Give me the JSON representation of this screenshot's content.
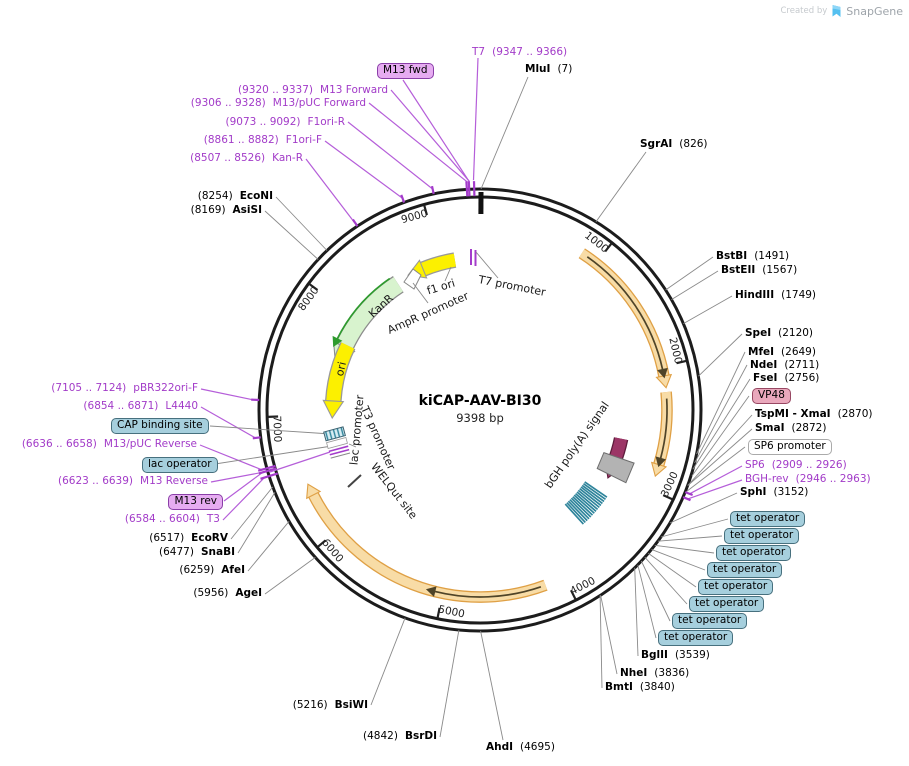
{
  "watermark": {
    "created_by": "Created by",
    "brand": "SnapGene"
  },
  "plasmid": {
    "name": "kiCAP-AAV-BI30",
    "size_label": "9398 bp",
    "length_bp": 9398
  },
  "colors": {
    "primer_purple": "#A23BC8",
    "leader_gray": "#8A8A8A",
    "ring_black": "#1C1C1C",
    "orange_fill": "#F8DCA6",
    "orange_border": "#DFA045",
    "orange_inner_arrow": "#4F4428",
    "green_fill": "#D8F3CE",
    "green_inner_arrow": "#2E9B2E",
    "yellow": "#FCF000",
    "maroon": "#9C3566",
    "gray_block": "#B3B3B3",
    "teal_hatch": "#2E849B",
    "primer_box_fill": "#E6ACF1",
    "teal_box_fill": "#A6CFDD",
    "pink_box_fill": "#E9A8BC"
  },
  "tick_labels": [
    {
      "bp": 1000,
      "text": "1000"
    },
    {
      "bp": 2000,
      "text": "2000"
    },
    {
      "bp": 3000,
      "text": "3000"
    },
    {
      "bp": 4000,
      "text": "4000"
    },
    {
      "bp": 5000,
      "text": "5000"
    },
    {
      "bp": 6000,
      "text": "6000"
    },
    {
      "bp": 7000,
      "text": "7000"
    },
    {
      "bp": 8000,
      "text": "8000"
    },
    {
      "bp": 9000,
      "text": "9000"
    }
  ],
  "enzymes": [
    {
      "id": "mlui",
      "name": "MluI",
      "pos": "(7)",
      "bp": 7,
      "pos_first": false
    },
    {
      "id": "sgrai",
      "name": "SgrAI",
      "pos": "(826)",
      "bp": 826,
      "pos_first": false
    },
    {
      "id": "bstbi",
      "name": "BstBI",
      "pos": "(1491)",
      "bp": 1491,
      "pos_first": false
    },
    {
      "id": "bsteii",
      "name": "BstEII",
      "pos": "(1567)",
      "bp": 1567,
      "pos_first": false
    },
    {
      "id": "hindiii",
      "name": "HindIII",
      "pos": "(1749)",
      "bp": 1749,
      "pos_first": false
    },
    {
      "id": "spei",
      "name": "SpeI",
      "pos": "(2120)",
      "bp": 2120,
      "pos_first": false
    },
    {
      "id": "mfei",
      "name": "MfeI",
      "pos": "(2649)",
      "bp": 2649,
      "pos_first": false
    },
    {
      "id": "ndei",
      "name": "NdeI",
      "pos": "(2711)",
      "bp": 2711,
      "pos_first": false
    },
    {
      "id": "fsei",
      "name": "FseI",
      "pos": "(2756)",
      "bp": 2756,
      "pos_first": false
    },
    {
      "id": "tspmi",
      "name": "TspMI - XmaI",
      "pos": "(2870)",
      "bp": 2870,
      "pos_first": false
    },
    {
      "id": "smai",
      "name": "SmaI",
      "pos": "(2872)",
      "bp": 2872,
      "pos_first": false
    },
    {
      "id": "sphi",
      "name": "SphI",
      "pos": "(3152)",
      "bp": 3152,
      "pos_first": false
    },
    {
      "id": "bglii",
      "name": "BglII",
      "pos": "(3539)",
      "bp": 3539,
      "pos_first": false
    },
    {
      "id": "nhei",
      "name": "NheI",
      "pos": "(3836)",
      "bp": 3836,
      "pos_first": false
    },
    {
      "id": "bmti",
      "name": "BmtI",
      "pos": "(3840)",
      "bp": 3840,
      "pos_first": false
    },
    {
      "id": "ahdi",
      "name": "AhdI",
      "pos": "(4695)",
      "bp": 4695,
      "pos_first": false
    },
    {
      "id": "bsrdi",
      "name": "BsrDI",
      "pos": "(4842)",
      "bp": 4842,
      "pos_first": true
    },
    {
      "id": "bsiwi",
      "name": "BsiWI",
      "pos": "(5216)",
      "bp": 5216,
      "pos_first": true
    },
    {
      "id": "agei",
      "name": "AgeI",
      "pos": "(5956)",
      "bp": 5956,
      "pos_first": true
    },
    {
      "id": "afei",
      "name": "AfeI",
      "pos": "(6259)",
      "bp": 6259,
      "pos_first": true
    },
    {
      "id": "snabi",
      "name": "SnaBI",
      "pos": "(6477)",
      "bp": 6477,
      "pos_first": true
    },
    {
      "id": "ecorv",
      "name": "EcoRV",
      "pos": "(6517)",
      "bp": 6517,
      "pos_first": true
    },
    {
      "id": "econi",
      "name": "EcoNI",
      "pos": "(8254)",
      "bp": 8254,
      "pos_first": true
    },
    {
      "id": "asisi",
      "name": "AsiSI",
      "pos": "(8169)",
      "bp": 8169,
      "pos_first": true
    }
  ],
  "primers": [
    {
      "id": "t7",
      "name": "T7",
      "range": "(9347 .. 9366)",
      "bp": 9356,
      "name_first": true
    },
    {
      "id": "m13_forward",
      "name": "M13 Forward",
      "range": "(9320 .. 9337)",
      "bp": 9328,
      "name_first": false
    },
    {
      "id": "m13puc_forward",
      "name": "M13/pUC Forward",
      "range": "(9306 .. 9328)",
      "bp": 9317,
      "name_first": false
    },
    {
      "id": "f1ori_r",
      "name": "F1ori-R",
      "range": "(9073 .. 9092)",
      "bp": 9082,
      "name_first": false
    },
    {
      "id": "f1ori_f",
      "name": "F1ori-F",
      "range": "(8861 .. 8882)",
      "bp": 8871,
      "name_first": false
    },
    {
      "id": "kan_r",
      "name": "Kan-R",
      "range": "(8507 .. 8526)",
      "bp": 8516,
      "name_first": false
    },
    {
      "id": "pbr322ori_f",
      "name": "pBR322ori-F",
      "range": "(7105 .. 7124)",
      "bp": 7114,
      "name_first": false
    },
    {
      "id": "l4440",
      "name": "L4440",
      "range": "(6854 .. 6871)",
      "bp": 6862,
      "name_first": false
    },
    {
      "id": "m13puc_reverse",
      "name": "M13/pUC Reverse",
      "range": "(6636 .. 6658)",
      "bp": 6647,
      "name_first": false
    },
    {
      "id": "m13_reverse",
      "name": "M13 Reverse",
      "range": "(6623 .. 6639)",
      "bp": 6631,
      "name_first": false
    },
    {
      "id": "t3",
      "name": "T3",
      "range": "(6584 .. 6604)",
      "bp": 6594,
      "name_first": false
    },
    {
      "id": "sp6",
      "name": "SP6",
      "range": "(2909 .. 2926)",
      "bp": 2917,
      "name_first": true
    },
    {
      "id": "bgh_rev",
      "name": "BGH-rev",
      "range": "(2946 .. 2963)",
      "bp": 2954,
      "name_first": true
    }
  ],
  "boxed_features": [
    {
      "id": "m13fwd_box",
      "label": "M13 fwd",
      "style": "primer-box",
      "bp": 9330
    },
    {
      "id": "vp48_box",
      "label": "VP48",
      "style": "pink-box",
      "bp": 2800
    },
    {
      "id": "sp6prom_box",
      "label": "SP6 promoter",
      "style": "plain-box",
      "bp": 2912
    },
    {
      "id": "m13rev_box",
      "label": "M13 rev",
      "style": "primer-box",
      "bp": 6631
    },
    {
      "id": "lacop_box",
      "label": "lac operator",
      "style": "teal-box",
      "bp": 6740
    },
    {
      "id": "cap_box",
      "label": "CAP binding site",
      "style": "teal-box",
      "bp": 6780
    },
    {
      "id": "tet1",
      "label": "tet operator",
      "style": "teal-box",
      "bp": 3265
    },
    {
      "id": "tet2",
      "label": "tet operator",
      "style": "teal-box",
      "bp": 3300
    },
    {
      "id": "tet3",
      "label": "tet operator",
      "style": "teal-box",
      "bp": 3335
    },
    {
      "id": "tet4",
      "label": "tet operator",
      "style": "teal-box",
      "bp": 3370
    },
    {
      "id": "tet5",
      "label": "tet operator",
      "style": "teal-box",
      "bp": 3405
    },
    {
      "id": "tet6",
      "label": "tet operator",
      "style": "teal-box",
      "bp": 3440
    },
    {
      "id": "tet7",
      "label": "tet operator",
      "style": "teal-box",
      "bp": 3475
    },
    {
      "id": "tet8",
      "label": "tet operator",
      "style": "teal-box",
      "bp": 3510
    }
  ],
  "inner_features": [
    {
      "id": "f1ori_lbl",
      "text": "f1 ori"
    },
    {
      "id": "ampr_lbl",
      "text": "AmpR promoter"
    },
    {
      "id": "t7prom_lbl",
      "text": "T7 promoter"
    },
    {
      "id": "kanr_lbl",
      "text": "KanR"
    },
    {
      "id": "ori_lbl",
      "text": "ori"
    },
    {
      "id": "lacprom_lbl",
      "text": "lac promoter"
    },
    {
      "id": "t3prom_lbl",
      "text": "T3 promoter"
    },
    {
      "id": "welqut_lbl",
      "text": "WELQut site"
    },
    {
      "id": "bgh_lbl",
      "text": "bGH poly(A) signal"
    }
  ]
}
